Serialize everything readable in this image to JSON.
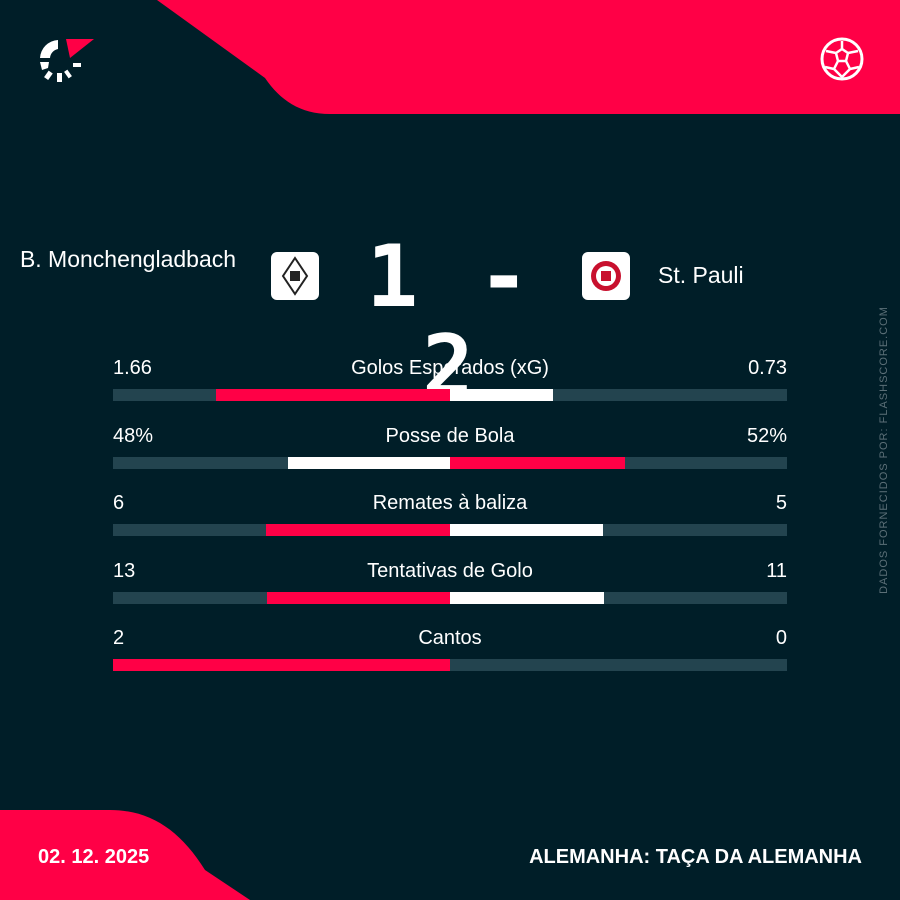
{
  "colors": {
    "background": "#001e28",
    "accent": "#ff0046",
    "track": "#23444f",
    "white": "#ffffff"
  },
  "brand": {
    "logo_icon": "flashscore-logo",
    "sport_icon": "soccer-ball-icon"
  },
  "match": {
    "home_team": "B. Monchengladbach",
    "away_team": "St. Pauli",
    "home_score": "1",
    "separator": "-",
    "away_score": "2"
  },
  "stats": [
    {
      "label": "Golos Esperados (xG)",
      "home": "1.66",
      "away": "0.73",
      "home_value": 1.66,
      "away_value": 0.73
    },
    {
      "label": "Posse de Bola",
      "home": "48%",
      "away": "52%",
      "home_value": 48,
      "away_value": 52
    },
    {
      "label": "Remates à baliza",
      "home": "6",
      "away": "5",
      "home_value": 6,
      "away_value": 5
    },
    {
      "label": "Tentativas de Golo",
      "home": "13",
      "away": "11",
      "home_value": 13,
      "away_value": 11
    },
    {
      "label": "Cantos",
      "home": "2",
      "away": "0",
      "home_value": 2,
      "away_value": 0
    }
  ],
  "source": "DADOS FORNECIDOS POR: FLASHSCORE.COM",
  "footer": {
    "date": "02. 12. 2025",
    "competition": "ALEMANHA: TAÇA DA ALEMANHA"
  }
}
